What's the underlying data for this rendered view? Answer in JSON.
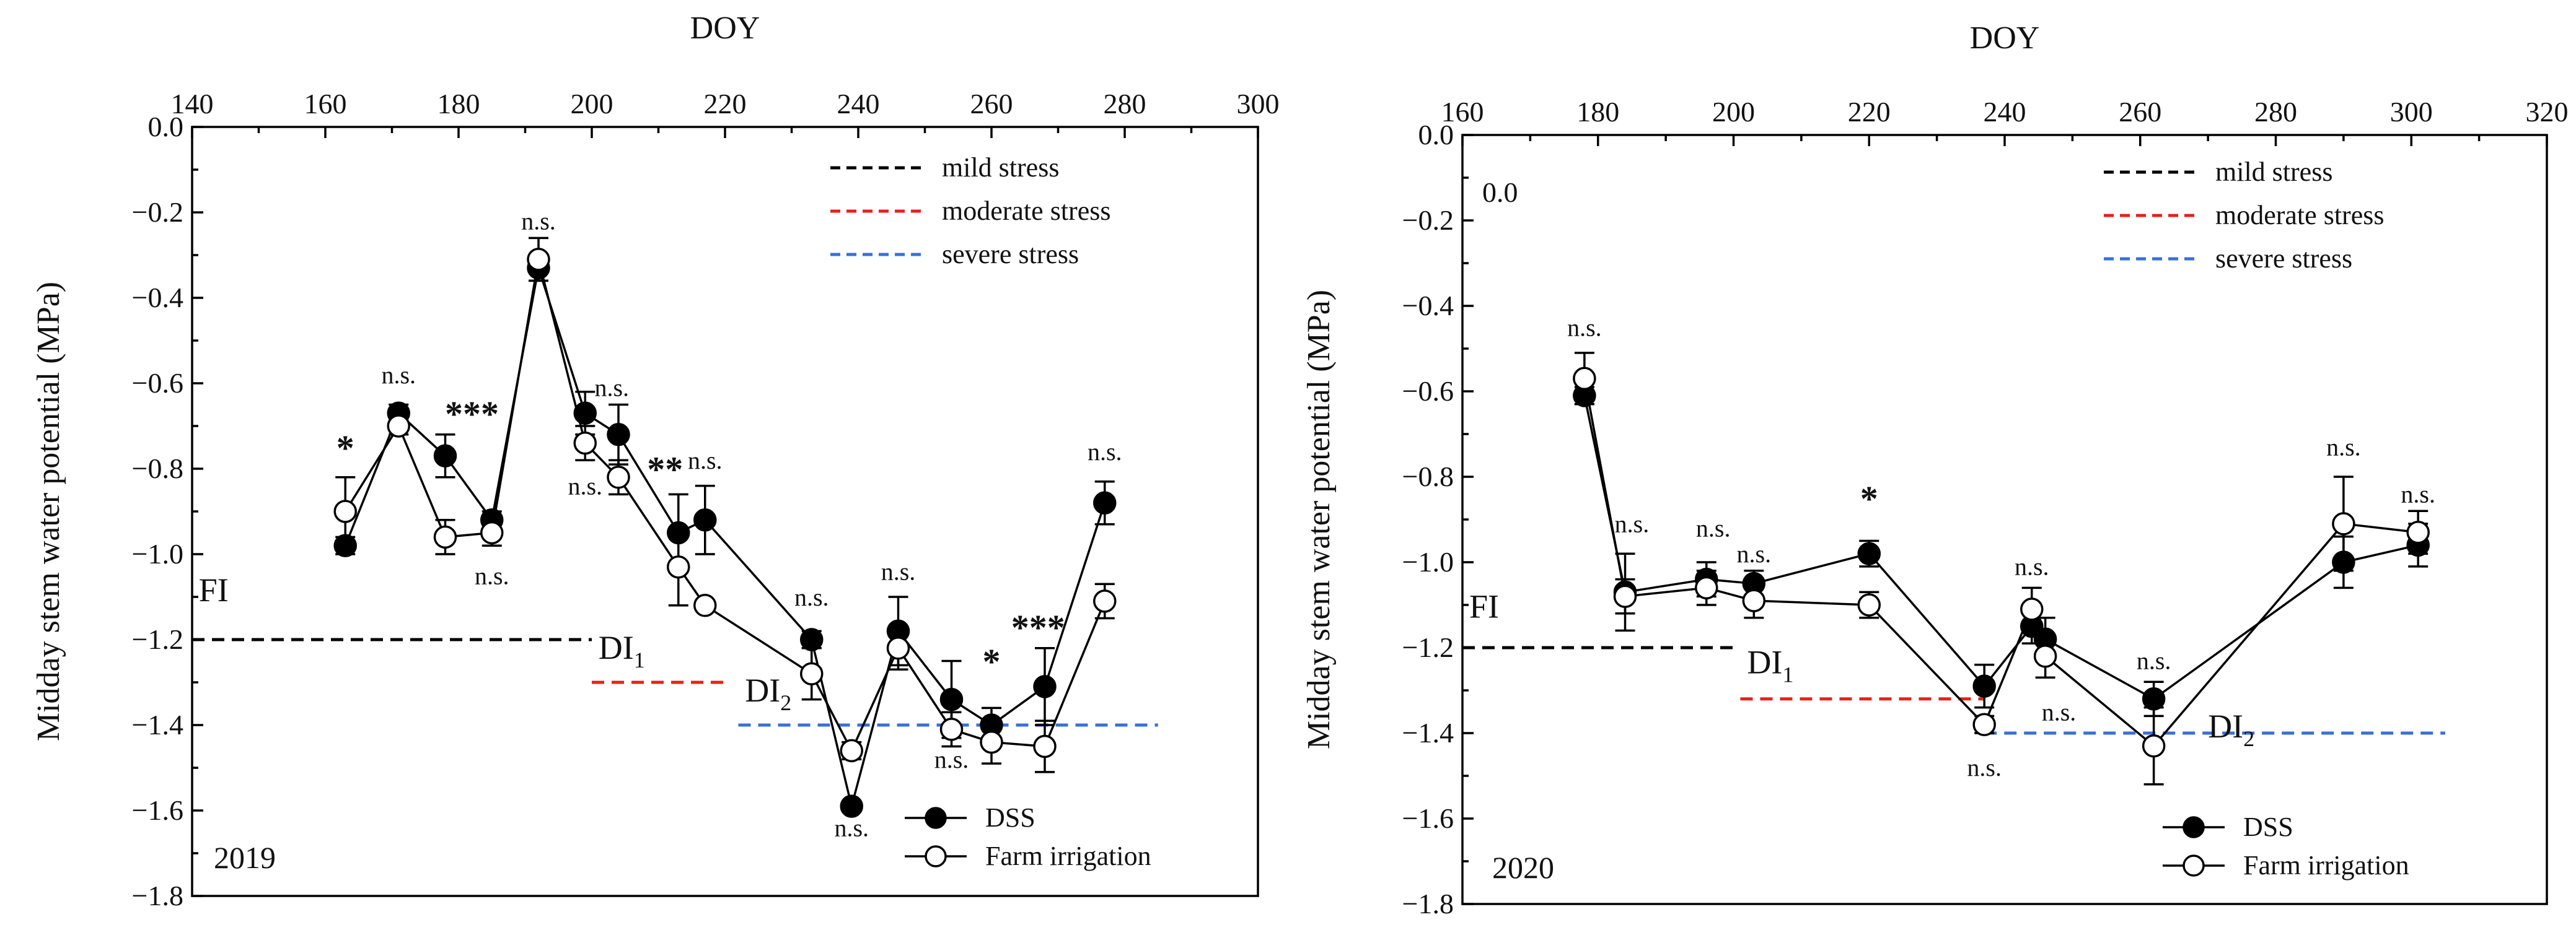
{
  "chart_data": [
    {
      "type": "line",
      "panel": "left",
      "xlabel": "DOY",
      "ylabel": "Midday stem water potential (MPa)",
      "xlim": [
        140,
        300
      ],
      "ylim": [
        -1.8,
        0.0
      ],
      "xticks": [
        140,
        160,
        180,
        200,
        220,
        240,
        260,
        280,
        300
      ],
      "yticks": [
        0.0,
        -0.2,
        -0.4,
        -0.6,
        -0.8,
        -1.0,
        -1.2,
        -1.4,
        -1.6,
        -1.8
      ],
      "ytick_labels": [
        "0.0",
        "−0.2",
        "−0.4",
        "−0.6",
        "−0.8",
        "−1.0",
        "−1.2",
        "−1.4",
        "−1.6",
        "−1.8"
      ],
      "year_label": "2019",
      "extra_label": "",
      "series": [
        {
          "name": "DSS",
          "marker": "filled-circle",
          "x": [
            163,
            171,
            178,
            185,
            192,
            199,
            204,
            213,
            217,
            233,
            239,
            246,
            254,
            260,
            268,
            277
          ],
          "values": [
            -0.98,
            -0.67,
            -0.77,
            -0.92,
            -0.33,
            -0.67,
            -0.72,
            -0.95,
            -0.92,
            -1.2,
            -1.59,
            -1.18,
            -1.34,
            -1.4,
            -1.31,
            -0.88
          ],
          "errors": [
            0.02,
            0.02,
            0.05,
            0.02,
            0.03,
            0.05,
            0.07,
            0.09,
            0.08,
            0.02,
            0.01,
            0.08,
            0.09,
            0.04,
            0.09,
            0.05
          ]
        },
        {
          "name": "Farm irrigation",
          "marker": "open-circle",
          "x": [
            163,
            171,
            178,
            185,
            192,
            199,
            204,
            213,
            217,
            233,
            239,
            246,
            254,
            260,
            268,
            277
          ],
          "values": [
            -0.9,
            -0.7,
            -0.96,
            -0.95,
            -0.31,
            -0.74,
            -0.82,
            -1.03,
            -1.12,
            -1.28,
            -1.46,
            -1.22,
            -1.41,
            -1.44,
            -1.45,
            -1.11
          ],
          "errors": [
            0.08,
            0.02,
            0.04,
            0.03,
            0.05,
            0.04,
            0.04,
            0.09,
            0.01,
            0.06,
            0.02,
            0.05,
            0.04,
            0.05,
            0.06,
            0.04
          ]
        }
      ],
      "reference_lines": [
        {
          "name": "mild stress",
          "color": "#000000",
          "y": -1.2,
          "x_from": 140,
          "x_to": 200
        },
        {
          "name": "moderate stress",
          "color": "#e8201a",
          "y": -1.3,
          "x_from": 200,
          "x_to": 220
        },
        {
          "name": "severe stress",
          "color": "#3a6fd8",
          "y": -1.4,
          "x_from": 222,
          "x_to": 285
        }
      ],
      "region_labels": [
        {
          "text": "FI",
          "sub": "",
          "x": 141,
          "y": -1.11
        },
        {
          "text": "DI",
          "sub": "1",
          "x": 201,
          "y": -1.245
        },
        {
          "text": "DI",
          "sub": "2",
          "x": 223,
          "y": -1.345
        }
      ],
      "significance": [
        {
          "text": "*",
          "x": 163,
          "y": -0.78
        },
        {
          "text": "n.s.",
          "x": 171,
          "y": -0.6
        },
        {
          "text": "***",
          "x": 182,
          "y": -0.7
        },
        {
          "text": "n.s.",
          "x": 185,
          "y": -1.07
        },
        {
          "text": "n.s.",
          "x": 192,
          "y": -0.24
        },
        {
          "text": "n.s.",
          "x": 203,
          "y": -0.63
        },
        {
          "text": "n.s.",
          "x": 199,
          "y": -0.86
        },
        {
          "text": "**",
          "x": 211,
          "y": -0.83
        },
        {
          "text": "n.s.",
          "x": 217,
          "y": -0.8
        },
        {
          "text": "n.s.",
          "x": 233,
          "y": -1.12
        },
        {
          "text": "n.s.",
          "x": 239,
          "y": -1.66
        },
        {
          "text": "n.s.",
          "x": 246,
          "y": -1.06
        },
        {
          "text": "n.s.",
          "x": 254,
          "y": -1.5
        },
        {
          "text": "*",
          "x": 260,
          "y": -1.28
        },
        {
          "text": "***",
          "x": 267,
          "y": -1.2
        },
        {
          "text": "n.s.",
          "x": 277,
          "y": -0.78
        }
      ],
      "legend": [
        "DSS",
        "Farm irrigation"
      ],
      "stress_legend": [
        "mild stress",
        "moderate stress",
        "severe stress"
      ]
    },
    {
      "type": "line",
      "panel": "right",
      "xlabel": "DOY",
      "ylabel": "Midday stem water potential (MPa)",
      "xlim": [
        160,
        320
      ],
      "ylim": [
        -1.8,
        0.0
      ],
      "xticks": [
        160,
        180,
        200,
        220,
        240,
        260,
        280,
        300,
        320
      ],
      "yticks": [
        0.0,
        -0.2,
        -0.4,
        -0.6,
        -0.8,
        -1.0,
        -1.2,
        -1.4,
        -1.6,
        -1.8
      ],
      "ytick_labels": [
        "0.0",
        "−0.2",
        "−0.4",
        "−0.6",
        "−0.8",
        "−1.0",
        "−1.2",
        "−1.4",
        "−1.6",
        "−1.8"
      ],
      "year_label": "2020",
      "extra_label": "0.0",
      "series": [
        {
          "name": "DSS",
          "marker": "filled-circle",
          "x": [
            178,
            184,
            196,
            203,
            220,
            237,
            244,
            246,
            262,
            290,
            301
          ],
          "values": [
            -0.61,
            -1.07,
            -1.04,
            -1.05,
            -0.98,
            -1.29,
            -1.15,
            -1.18,
            -1.32,
            -1.0,
            -0.96
          ],
          "errors": [
            0.02,
            0.09,
            0.04,
            0.03,
            0.03,
            0.05,
            0.04,
            0.05,
            0.04,
            0.06,
            0.05
          ]
        },
        {
          "name": "Farm irrigation",
          "marker": "open-circle",
          "x": [
            178,
            184,
            196,
            203,
            220,
            237,
            244,
            246,
            262,
            290,
            301
          ],
          "values": [
            -0.57,
            -1.08,
            -1.06,
            -1.09,
            -1.1,
            -1.38,
            -1.11,
            -1.22,
            -1.43,
            -0.91,
            -0.93
          ],
          "errors": [
            0.06,
            0.04,
            0.04,
            0.04,
            0.03,
            0.02,
            0.05,
            0.05,
            0.09,
            0.11,
            0.05
          ]
        }
      ],
      "reference_lines": [
        {
          "name": "mild stress",
          "color": "#000000",
          "y": -1.2,
          "x_from": 160,
          "x_to": 200
        },
        {
          "name": "moderate stress",
          "color": "#e8201a",
          "y": -1.32,
          "x_from": 201,
          "x_to": 237
        },
        {
          "name": "severe stress",
          "color": "#3a6fd8",
          "y": -1.4,
          "x_from": 237,
          "x_to": 305
        }
      ],
      "region_labels": [
        {
          "text": "FI",
          "sub": "",
          "x": 161,
          "y": -1.13
        },
        {
          "text": "DI",
          "sub": "1",
          "x": 202,
          "y": -1.26
        },
        {
          "text": "DI",
          "sub": "2",
          "x": 270,
          "y": -1.41
        }
      ],
      "significance": [
        {
          "text": "n.s.",
          "x": 178,
          "y": -0.47
        },
        {
          "text": "n.s.",
          "x": 185,
          "y": -0.93
        },
        {
          "text": "n.s.",
          "x": 197,
          "y": -0.94
        },
        {
          "text": "n.s.",
          "x": 203,
          "y": -1.0
        },
        {
          "text": "*",
          "x": 220,
          "y": -0.88
        },
        {
          "text": "n.s.",
          "x": 237,
          "y": -1.5
        },
        {
          "text": "n.s.",
          "x": 244,
          "y": -1.03
        },
        {
          "text": "n.s.",
          "x": 248,
          "y": -1.37
        },
        {
          "text": "n.s.",
          "x": 262,
          "y": -1.25
        },
        {
          "text": "n.s.",
          "x": 290,
          "y": -0.75
        },
        {
          "text": "n.s.",
          "x": 301,
          "y": -0.86
        }
      ],
      "legend": [
        "DSS",
        "Farm irrigation"
      ],
      "stress_legend": [
        "mild stress",
        "moderate stress",
        "severe stress"
      ]
    }
  ]
}
